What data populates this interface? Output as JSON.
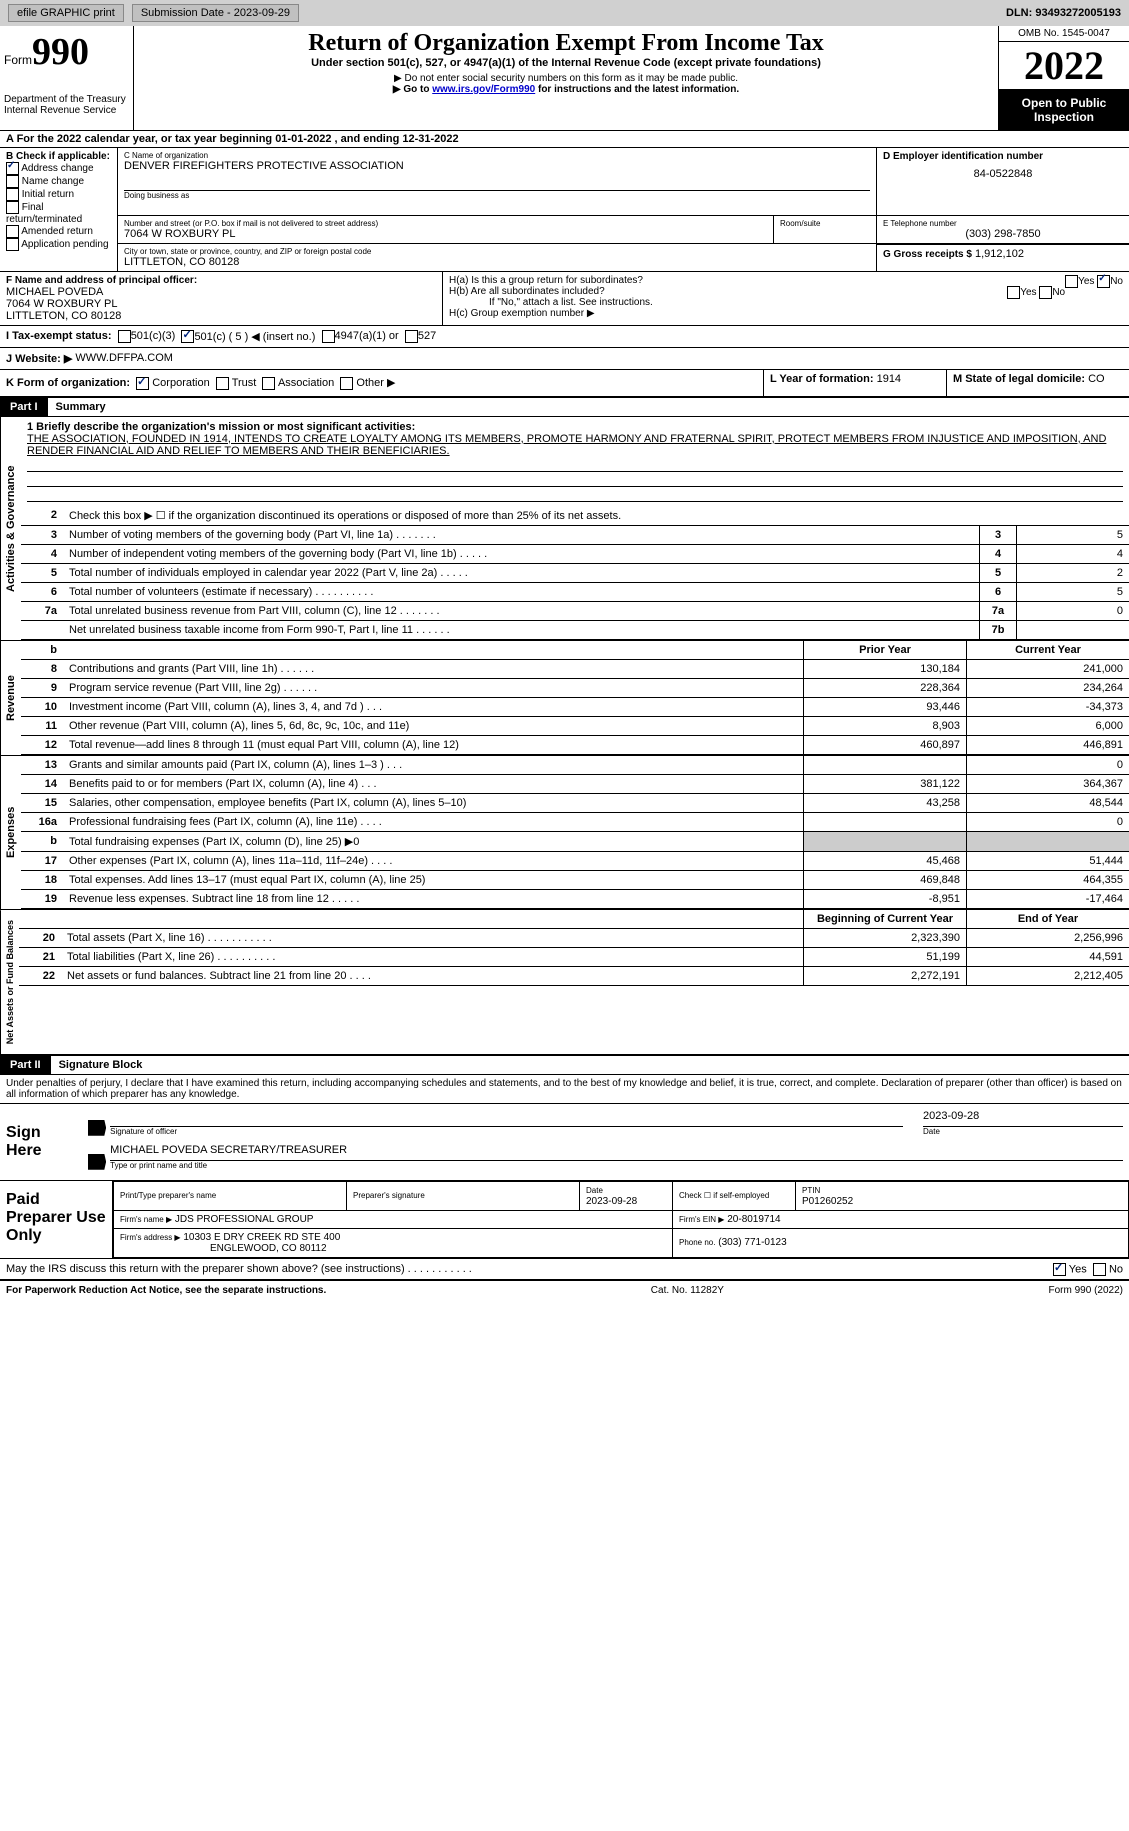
{
  "top": {
    "efile_label": "efile GRAPHIC print",
    "submission_label": "Submission Date - 2023-09-29",
    "dln_label": "DLN: 93493272005193"
  },
  "header": {
    "form_word": "Form",
    "form_number": "990",
    "dept": "Department of the Treasury",
    "irs": "Internal Revenue Service",
    "title": "Return of Organization Exempt From Income Tax",
    "subtitle": "Under section 501(c), 527, or 4947(a)(1) of the Internal Revenue Code (except private foundations)",
    "note1": "▶ Do not enter social security numbers on this form as it may be made public.",
    "note2_prefix": "▶ Go to ",
    "note2_link": "www.irs.gov/Form990",
    "note2_suffix": " for instructions and the latest information.",
    "omb": "OMB No. 1545-0047",
    "year": "2022",
    "inspection": "Open to Public Inspection"
  },
  "period": {
    "text": "A For the 2022 calendar year, or tax year beginning 01-01-2022     , and ending 12-31-2022"
  },
  "boxB": {
    "label": "B Check if applicable:",
    "items": [
      "Address change",
      "Name change",
      "Initial return",
      "Final return/terminated",
      "Amended return",
      "Application pending"
    ],
    "checked_index": 0
  },
  "boxC": {
    "name_label": "C Name of organization",
    "name": "DENVER FIREFIGHTERS PROTECTIVE ASSOCIATION",
    "dba_label": "Doing business as",
    "addr_label": "Number and street (or P.O. box if mail is not delivered to street address)",
    "addr": "7064 W ROXBURY PL",
    "room_label": "Room/suite",
    "city_label": "City or town, state or province, country, and ZIP or foreign postal code",
    "city": "LITTLETON, CO  80128"
  },
  "boxD": {
    "label": "D Employer identification number",
    "value": "84-0522848"
  },
  "boxE": {
    "label": "E Telephone number",
    "value": "(303) 298-7850"
  },
  "boxG": {
    "label": "G Gross receipts $",
    "value": "1,912,102"
  },
  "boxF": {
    "label": "F Name and address of principal officer:",
    "name": "MICHAEL POVEDA",
    "addr1": "7064 W ROXBURY PL",
    "addr2": "LITTLETON, CO  80128"
  },
  "boxH": {
    "a": "H(a)  Is this a group return for subordinates?",
    "b": "H(b)  Are all subordinates included?",
    "note": "If \"No,\" attach a list. See instructions.",
    "c": "H(c)  Group exemption number ▶"
  },
  "boxI": {
    "label": "I   Tax-exempt status:",
    "opts": [
      "501(c)(3)",
      "501(c) ( 5 ) ◀ (insert no.)",
      "4947(a)(1) or",
      "527"
    ],
    "checked": 1
  },
  "boxJ": {
    "label": "J   Website: ▶",
    "value": "WWW.DFFPA.COM"
  },
  "boxK": {
    "label": "K Form of organization:",
    "opts": [
      "Corporation",
      "Trust",
      "Association",
      "Other ▶"
    ],
    "checked": 0
  },
  "boxL": {
    "label": "L Year of formation:",
    "value": "1914"
  },
  "boxM": {
    "label": "M State of legal domicile:",
    "value": "CO"
  },
  "part1": {
    "header": "Part I",
    "title": "Summary",
    "mission_label": "1   Briefly describe the organization's mission or most significant activities:",
    "mission": "THE ASSOCIATION, FOUNDED IN 1914, INTENDS TO CREATE LOYALTY AMONG ITS MEMBERS, PROMOTE HARMONY AND FRATERNAL SPIRIT, PROTECT MEMBERS FROM INJUSTICE AND IMPOSITION, AND RENDER FINANCIAL AID AND RELIEF TO MEMBERS AND THEIR BENEFICIARIES.",
    "line2": "Check this box ▶ ☐  if the organization discontinued its operations or disposed of more than 25% of its net assets.",
    "sections": {
      "governance_label": "Activities & Governance",
      "revenue_label": "Revenue",
      "expenses_label": "Expenses",
      "netassets_label": "Net Assets or Fund Balances"
    },
    "col_prior": "Prior Year",
    "col_current": "Current Year",
    "col_begin": "Beginning of Current Year",
    "col_end": "End of Year",
    "rows_gov": [
      {
        "n": "3",
        "d": "Number of voting members of the governing body (Part VI, line 1a)   .     .     .     .     .     .     .",
        "b": "3",
        "v": "5"
      },
      {
        "n": "4",
        "d": "Number of independent voting members of the governing body (Part VI, line 1b)   .     .     .     .     .",
        "b": "4",
        "v": "4"
      },
      {
        "n": "5",
        "d": "Total number of individuals employed in calendar year 2022 (Part V, line 2a)   .     .     .     .     .",
        "b": "5",
        "v": "2"
      },
      {
        "n": "6",
        "d": "Total number of volunteers (estimate if necessary)    .     .     .     .     .     .     .     .     .     .",
        "b": "6",
        "v": "5"
      },
      {
        "n": "7a",
        "d": "Total unrelated business revenue from Part VIII, column (C), line 12   .     .     .     .     .     .     .",
        "b": "7a",
        "v": "0"
      },
      {
        "n": "",
        "d": "Net unrelated business taxable income from Form 990-T, Part I, line 11   .     .     .     .     .     .",
        "b": "7b",
        "v": ""
      }
    ],
    "rows_rev": [
      {
        "n": "8",
        "d": "Contributions and grants (Part VIII, line 1h)   .     .     .     .     .     .",
        "p": "130,184",
        "c": "241,000"
      },
      {
        "n": "9",
        "d": "Program service revenue (Part VIII, line 2g)   .     .     .     .     .     .",
        "p": "228,364",
        "c": "234,264"
      },
      {
        "n": "10",
        "d": "Investment income (Part VIII, column (A), lines 3, 4, and 7d )   .     .     .",
        "p": "93,446",
        "c": "-34,373"
      },
      {
        "n": "11",
        "d": "Other revenue (Part VIII, column (A), lines 5, 6d, 8c, 9c, 10c, and 11e)",
        "p": "8,903",
        "c": "6,000"
      },
      {
        "n": "12",
        "d": "Total revenue—add lines 8 through 11 (must equal Part VIII, column (A), line 12)",
        "p": "460,897",
        "c": "446,891"
      }
    ],
    "rows_exp": [
      {
        "n": "13",
        "d": "Grants and similar amounts paid (Part IX, column (A), lines 1–3 )   .     .     .",
        "p": "",
        "c": "0"
      },
      {
        "n": "14",
        "d": "Benefits paid to or for members (Part IX, column (A), line 4)   .     .     .",
        "p": "381,122",
        "c": "364,367"
      },
      {
        "n": "15",
        "d": "Salaries, other compensation, employee benefits (Part IX, column (A), lines 5–10)",
        "p": "43,258",
        "c": "48,544"
      },
      {
        "n": "16a",
        "d": "Professional fundraising fees (Part IX, column (A), line 11e)   .     .     .     .",
        "p": "",
        "c": "0"
      },
      {
        "n": "b",
        "d": "Total fundraising expenses (Part IX, column (D), line 25) ▶0",
        "p": "SHADED",
        "c": "SHADED"
      },
      {
        "n": "17",
        "d": "Other expenses (Part IX, column (A), lines 11a–11d, 11f–24e)   .     .     .     .",
        "p": "45,468",
        "c": "51,444"
      },
      {
        "n": "18",
        "d": "Total expenses. Add lines 13–17 (must equal Part IX, column (A), line 25)",
        "p": "469,848",
        "c": "464,355"
      },
      {
        "n": "19",
        "d": "Revenue less expenses. Subtract line 18 from line 12   .     .     .     .     .",
        "p": "-8,951",
        "c": "-17,464"
      }
    ],
    "rows_net": [
      {
        "n": "20",
        "d": "Total assets (Part X, line 16)   .     .     .     .     .     .     .     .     .     .     .",
        "p": "2,323,390",
        "c": "2,256,996"
      },
      {
        "n": "21",
        "d": "Total liabilities (Part X, line 26)   .     .     .     .     .     .     .     .     .     .",
        "p": "51,199",
        "c": "44,591"
      },
      {
        "n": "22",
        "d": "Net assets or fund balances. Subtract line 21 from line 20   .     .     .     .",
        "p": "2,272,191",
        "c": "2,212,405"
      }
    ]
  },
  "part2": {
    "header": "Part II",
    "title": "Signature Block",
    "declaration": "Under penalties of perjury, I declare that I have examined this return, including accompanying schedules and statements, and to the best of my knowledge and belief, it is true, correct, and complete. Declaration of preparer (other than officer) is based on all information of which preparer has any knowledge.",
    "sign_here": "Sign Here",
    "sig_officer": "Signature of officer",
    "sig_date": "2023-09-28",
    "date_label": "Date",
    "officer_name": "MICHAEL POVEDA  SECRETARY/TREASURER",
    "type_label": "Type or print name and title",
    "paid_label": "Paid Preparer Use Only",
    "prep_name_label": "Print/Type preparer's name",
    "prep_sig_label": "Preparer's signature",
    "prep_date_label": "Date",
    "prep_date": "2023-09-28",
    "self_emp": "Check ☐ if self-employed",
    "ptin_label": "PTIN",
    "ptin": "P01260252",
    "firm_name_label": "Firm's name    ▶",
    "firm_name": "JDS PROFESSIONAL GROUP",
    "firm_ein_label": "Firm's EIN ▶",
    "firm_ein": "20-8019714",
    "firm_addr_label": "Firm's address ▶",
    "firm_addr": "10303 E DRY CREEK RD STE 400",
    "firm_city": "ENGLEWOOD, CO  80112",
    "phone_label": "Phone no.",
    "phone": "(303) 771-0123",
    "discuss": "May the IRS discuss this return with the preparer shown above? (see instructions)   .     .     .     .     .     .     .     .     .     .     .",
    "yes": "Yes",
    "no": "No"
  },
  "footer": {
    "left": "For Paperwork Reduction Act Notice, see the separate instructions.",
    "center": "Cat. No. 11282Y",
    "right": "Form 990 (2022)"
  }
}
